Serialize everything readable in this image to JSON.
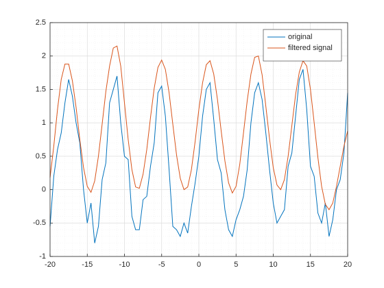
{
  "chart_data": {
    "type": "line",
    "x": [
      -20,
      -19.5,
      -19,
      -18.5,
      -18,
      -17.5,
      -17,
      -16.5,
      -16,
      -15.5,
      -15,
      -14.5,
      -14,
      -13.5,
      -13,
      -12.5,
      -12,
      -11.5,
      -11,
      -10.5,
      -10,
      -9.5,
      -9,
      -8.5,
      -8,
      -7.5,
      -7,
      -6.5,
      -6,
      -5.5,
      -5,
      -4.5,
      -4,
      -3.5,
      -3,
      -2.5,
      -2,
      -1.5,
      -1,
      -0.5,
      0,
      0.5,
      1,
      1.5,
      2,
      2.5,
      3,
      3.5,
      4,
      4.5,
      5,
      5.5,
      6,
      6.5,
      7,
      7.5,
      8,
      8.5,
      9,
      9.5,
      10,
      10.5,
      11,
      11.5,
      12,
      12.5,
      13,
      13.5,
      14,
      14.5,
      15,
      15.5,
      16,
      16.5,
      17,
      17.5,
      18,
      18.5,
      19,
      19.5,
      20
    ],
    "series": [
      {
        "name": "original",
        "color": "#0072bd",
        "values": [
          -0.55,
          0.2,
          0.6,
          0.85,
          1.3,
          1.65,
          1.4,
          1.0,
          0.7,
          0.0,
          -0.5,
          -0.2,
          -0.8,
          -0.55,
          0.15,
          0.4,
          1.3,
          1.5,
          1.7,
          1.0,
          0.5,
          0.45,
          -0.4,
          -0.6,
          -0.6,
          -0.15,
          -0.1,
          0.35,
          0.7,
          1.45,
          1.55,
          1.1,
          0.3,
          -0.55,
          -0.6,
          -0.7,
          -0.5,
          -0.65,
          -0.25,
          0.1,
          0.5,
          1.1,
          1.5,
          1.6,
          1.05,
          0.45,
          0.25,
          -0.3,
          -0.6,
          -0.7,
          -0.45,
          -0.3,
          -0.1,
          0.3,
          1.0,
          1.45,
          1.6,
          1.35,
          0.85,
          0.3,
          -0.2,
          -0.5,
          -0.4,
          -0.3,
          0.35,
          0.55,
          1.1,
          1.65,
          1.8,
          1.2,
          0.35,
          0.2,
          -0.35,
          -0.5,
          -0.2,
          -0.7,
          -0.45,
          0.0,
          0.15,
          0.55,
          1.45
        ]
      },
      {
        "name": "filtered signal",
        "color": "#d95319",
        "values": [
          0.18,
          0.65,
          1.2,
          1.65,
          1.88,
          1.88,
          1.63,
          1.23,
          0.75,
          0.33,
          0.05,
          -0.04,
          0.13,
          0.5,
          0.98,
          1.47,
          1.85,
          2.12,
          2.15,
          1.85,
          1.3,
          0.75,
          0.3,
          0.04,
          0.02,
          0.23,
          0.6,
          1.08,
          1.52,
          1.83,
          1.94,
          1.8,
          1.45,
          0.98,
          0.52,
          0.17,
          0.0,
          0.04,
          0.3,
          0.72,
          1.2,
          1.6,
          1.87,
          1.93,
          1.73,
          1.35,
          0.88,
          0.43,
          0.1,
          -0.05,
          0.05,
          0.38,
          0.85,
          1.33,
          1.73,
          1.98,
          2.0,
          1.72,
          1.25,
          0.76,
          0.33,
          0.07,
          0.0,
          0.15,
          0.5,
          0.96,
          1.42,
          1.76,
          1.93,
          1.85,
          1.5,
          1.0,
          0.48,
          0.05,
          -0.22,
          -0.3,
          -0.2,
          0.05,
          0.35,
          0.65,
          0.88
        ]
      }
    ],
    "xlim": [
      -20,
      20
    ],
    "xticks": [
      -20,
      -15,
      -10,
      -5,
      0,
      5,
      10,
      15,
      20
    ],
    "ylim": [
      -1,
      2.5
    ],
    "yticks": [
      -1,
      -0.5,
      0,
      0.5,
      1,
      1.5,
      2,
      2.5
    ],
    "grid": true,
    "minor_grid": true,
    "legend": "upper-right"
  }
}
